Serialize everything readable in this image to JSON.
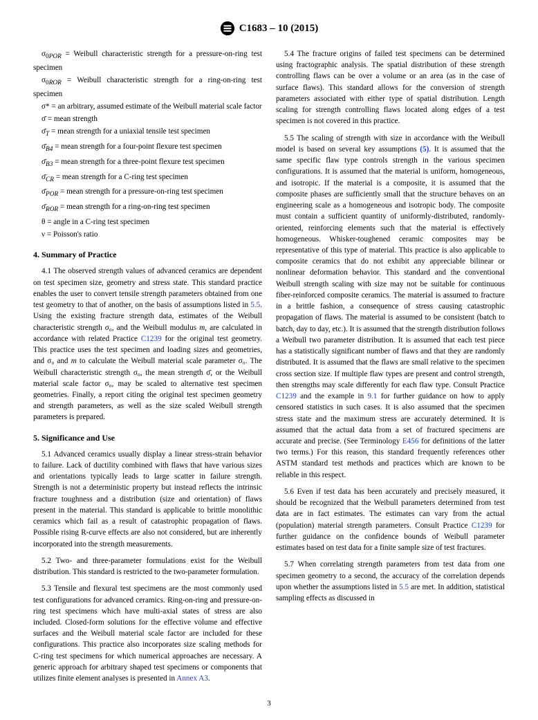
{
  "header": {
    "designation": "C1683 – 10 (2015)"
  },
  "definitions": [
    {
      "sym": "σ<sub>0<i>POR</i></sub>",
      "text": " = Weibull characteristic strength for a pressure-on-ring test specimen"
    },
    {
      "sym": "σ<sub>0<i>ROR</i></sub>",
      "text": " = Weibull characteristic strength for a ring-on-ring test specimen"
    },
    {
      "sym": "σ*",
      "text": " = an arbitrary, assumed estimate of the Weibull material scale factor"
    },
    {
      "sym": "σ̄",
      "text": " = mean strength"
    },
    {
      "sym": "σ̄<sub><i>T</i></sub>",
      "text": " = mean strength for a uniaxial tensile test specimen"
    },
    {
      "sym": "σ̄<sub><i>B4</i></sub>",
      "text": " = mean strength for a four-point flexure test specimen"
    },
    {
      "sym": "σ̄<sub><i>B3</i></sub>",
      "text": " = mean strength for a three-point flexure test specimen"
    },
    {
      "sym": "σ̄<sub><i>CR</i></sub>",
      "text": " = mean strength for a C-ring test specimen"
    },
    {
      "sym": "σ̄<sub><i>POR</i></sub>",
      "text": " = mean strength for a pressure-on-ring test specimen"
    },
    {
      "sym": "σ̄<sub><i>ROR</i></sub>",
      "text": " = mean strength for a ring-on-ring test specimen"
    },
    {
      "sym": "θ",
      "text": " = angle in a C-ring test specimen"
    },
    {
      "sym": "ν",
      "text": " = Poisson's ratio"
    }
  ],
  "sections": {
    "s4_title": "4. Summary of Practice",
    "s4_1": "4.1 The observed strength values of advanced ceramics are dependent on test specimen size, geometry and stress state. This standard practice enables the user to convert tensile strength parameters obtained from one test geometry to that of another, on the basis of assumptions listed in ",
    "s4_1b": ". Using the existing fracture strength data, estimates of the Weibull characteristic strength σ₀, and the Weibull modulus ",
    "s4_1c": ", are calculated in accordance with related Practice ",
    "s4_1d": " for the original test geometry. This practice uses the test specimen and loading sizes and geometries, and σ₀ and ",
    "s4_1e": " to calculate the Weibull material scale parameter σ₀. The Weibull characteristic strength σ₀, the mean strength σ̄, or the Weibull material scale factor σ₀, may be scaled to alternative test specimen geometries. Finally, a report citing the original test specimen geometry and strength parameters, as well as the size scaled Weibull strength parameters is prepared.",
    "s5_title": "5. Significance and Use",
    "s5_1": "5.1 Advanced ceramics usually display a linear stress-strain behavior to failure. Lack of ductility combined with flaws that have various sizes and orientations typically leads to large scatter in failure strength. Strength is not a deterministic property but instead reflects the intrinsic fracture toughness and a distribution (size and orientation) of flaws present in the material. This standard is applicable to brittle monolithic ceramics which fail as a result of catastrophic propagation of flaws. Possible rising R-curve effects are also not considered, but are inherently incorporated into the strength measurements.",
    "s5_2": "5.2 Two- and three-parameter formulations exist for the Weibull distribution. This standard is restricted to the two-parameter formulation.",
    "s5_3": "5.3 Tensile and flexural test specimens are the most commonly used test configurations for advanced ceramics. Ring-on-ring and pressure-on-ring test specimens which have multi-axial states of stress are also included. Closed-form solutions for the effective volume and effective surfaces and the Weibull material scale factor are included for these configurations. This practice also incorporates size scaling methods for C-ring test specimens for which numerical approaches are necessary. A generic approach for arbitrary shaped test specimens or components that utilizes finite element analyses is presented in ",
    "s5_3b": ".",
    "s5_4": "5.4 The fracture origins of failed test specimens can be determined using fractographic analysis. The spatial distribution of these strength controlling flaws can be over a volume or an area (as in the case of surface flaws). This standard allows for the conversion of strength parameters associated with either type of spatial distribution. Length scaling for strength controlling flaws located along edges of a test specimen is not covered in this practice.",
    "s5_5a": "5.5 The scaling of strength with size in accordance with the Weibull model is based on several key assumptions ",
    "s5_5b": ". It is assumed that the same specific flaw type controls strength in the various specimen configurations. It is assumed that the material is uniform, homogeneous, and isotropic. If the material is a composite, it is assumed that the composite phases are sufficiently small that the structure behaves on an engineering scale as a homogeneous and isotropic body. The composite must contain a sufficient quantity of uniformly-distributed, randomly-oriented, reinforcing elements such that the material is effectively homogeneous. Whisker-toughened ceramic composites may be representative of this type of material. This practice is also applicable to composite ceramics that do not exhibit any appreciable bilinear or nonlinear deformation behavior. This standard and the conventional Weibull strength scaling with size may not be suitable for continuous fiber-reinforced composite ceramics. The material is assumed to fracture in a brittle fashion, a consequence of stress causing catastrophic propagation of flaws. The material is assumed to be consistent (batch to batch, day to day, etc.). It is assumed that the strength distribution follows a Weibull two parameter distribution. It is assumed that each test piece has a statistically significant number of flaws and that they are randomly distributed. It is assumed that the flaws are small relative to the specimen cross section size. If multiple flaw types are present and control strength, then strengths may scale differently for each flaw type. Consult Practice ",
    "s5_5c": " and the example in ",
    "s5_5d": " for further guidance on how to apply censored statistics in such cases. It is also assumed that the specimen stress state and the maximum stress are accurately determined. It is assumed that the actual data from a set of fractured specimens are accurate and precise. (See Terminology ",
    "s5_5e": " for definitions of the latter two terms.) For this reason, this standard frequently references other ASTM standard test methods and practices which are known to be reliable in this respect.",
    "s5_6a": "5.6 Even if test data has been accurately and precisely measured, it should be recognized that the Weibull parameters determined from test data are in fact estimates. The estimates can vary from the actual (population) material strength parameters. Consult Practice ",
    "s5_6b": " for further guidance on the confidence bounds of Weibull parameter estimates based on test data for a finite sample size of test fractures.",
    "s5_7a": "5.7 When correlating strength parameters from test data from one specimen geometry to a second, the accuracy of the correlation depends upon whether the assumptions listed in ",
    "s5_7b": " are met. In addition, statistical sampling effects as discussed in"
  },
  "links": {
    "r55": "5.5",
    "c1239": "C1239",
    "annexA3": "Annex A3",
    "ref5": "(5)",
    "r91": "9.1",
    "e456": "E456"
  },
  "italic_m": "m",
  "pagenum": "3"
}
